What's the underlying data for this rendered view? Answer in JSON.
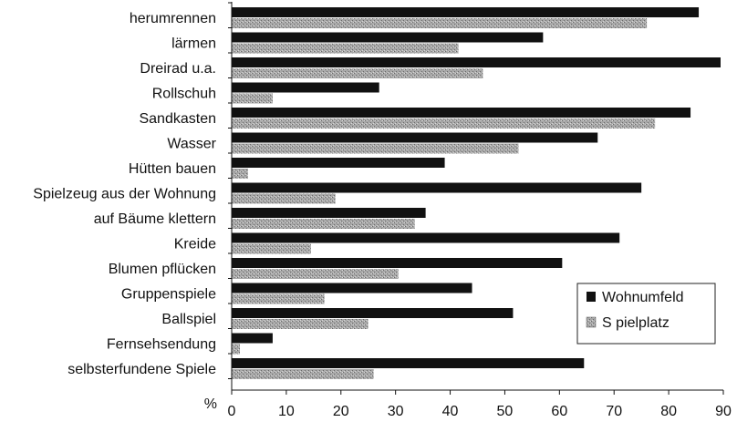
{
  "chart_data": {
    "type": "bar",
    "orientation": "horizontal",
    "categories": [
      "herumrennen",
      "lärmen",
      "Dreirad u.a.",
      "Rollschuh",
      "Sandkasten",
      "Wasser",
      "Hütten bauen",
      "Spielzeug aus der Wohnung",
      "auf Bäume klettern",
      "Kreide",
      "Blumen pflücken",
      "Gruppenspiele",
      "Ballspiel",
      "Fernsehsendung",
      "selbsterfundene Spiele"
    ],
    "series": [
      {
        "name": "Wohnumfeld",
        "color": "#111111",
        "values": [
          85.5,
          57,
          89.5,
          27,
          84,
          67,
          39,
          75,
          35.5,
          71,
          60.5,
          44,
          51.5,
          7.5,
          64.5
        ]
      },
      {
        "name": "S pielplatz",
        "color": "#9a9a9a",
        "values": [
          76,
          41.5,
          46,
          7.5,
          77.5,
          52.5,
          3,
          19,
          33.5,
          14.5,
          30.5,
          17,
          25,
          1.5,
          26
        ]
      }
    ],
    "xlim": [
      0,
      90
    ],
    "xticks": [
      0,
      10,
      20,
      30,
      40,
      50,
      60,
      70,
      80,
      90
    ],
    "axis_unit_label": "%",
    "legend": "right",
    "grid": false
  }
}
